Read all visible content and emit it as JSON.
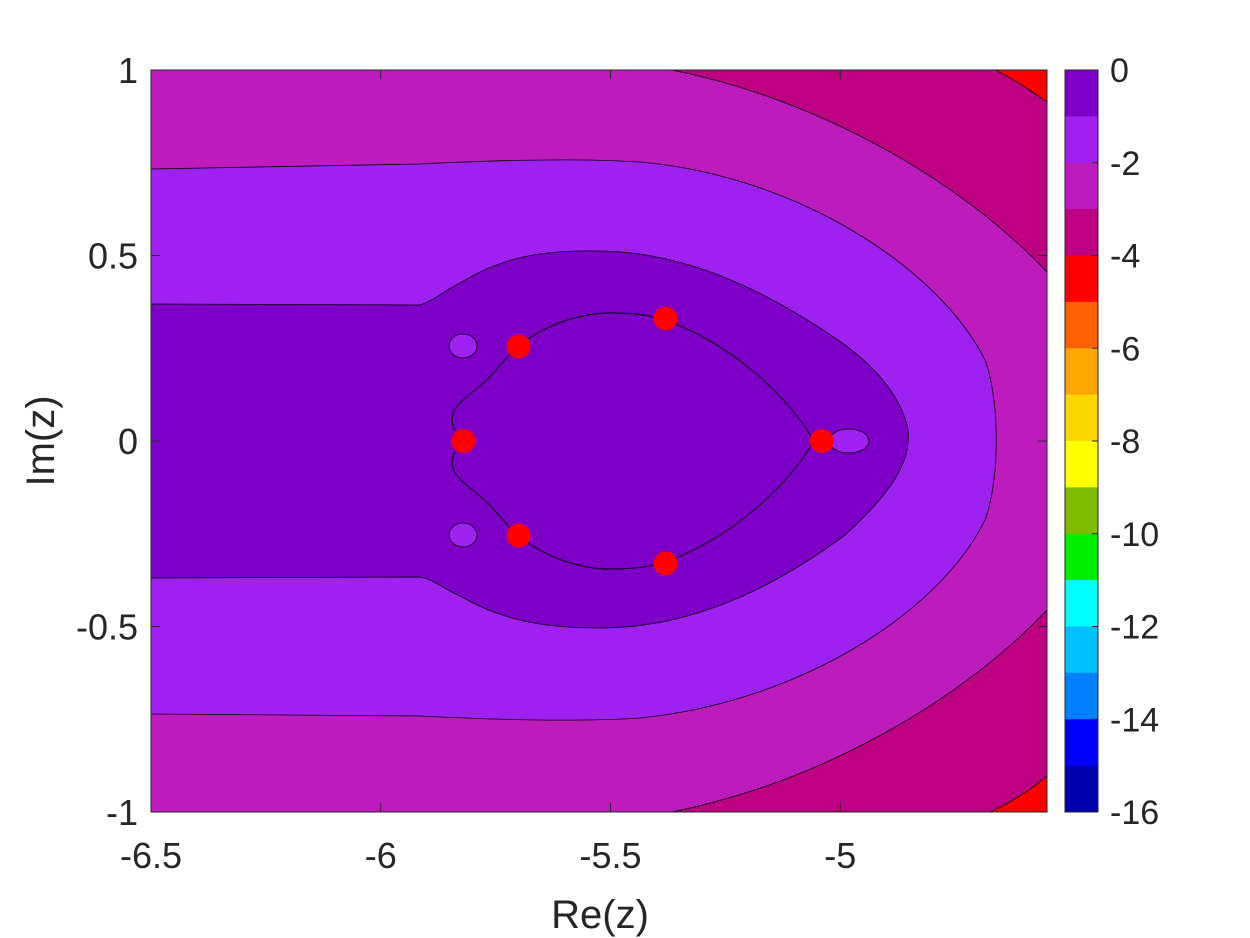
{
  "chart_data": {
    "type": "contour",
    "xlabel": "Re(z)",
    "ylabel": "Im(z)",
    "xlim": [
      -6.5,
      -4.55
    ],
    "ylim": [
      -1,
      1
    ],
    "xticks": [
      -6.5,
      -6,
      -5.5,
      -5
    ],
    "xtick_labels": [
      "-6.5",
      "-6",
      "-5.5",
      "-5"
    ],
    "yticks": [
      1,
      0.5,
      0,
      -0.5,
      -1
    ],
    "ytick_labels": [
      "1",
      "0.5",
      "0",
      "-0.5",
      "-1"
    ],
    "colorbar": {
      "range": [
        -16,
        0
      ],
      "ticks": [
        0,
        -2,
        -4,
        -6,
        -8,
        -10,
        -12,
        -14,
        -16
      ],
      "tick_labels": [
        "0",
        "-2",
        "-4",
        "-6",
        "-8",
        "-10",
        "-12",
        "-14",
        "-16"
      ],
      "level_step": 1,
      "colors_top_to_bottom": [
        "#7e00c8",
        "#9f21f2",
        "#bd1bbd",
        "#be0082",
        "#ff0000",
        "#ff6000",
        "#ffa500",
        "#ffd700",
        "#ffff00",
        "#80bb00",
        "#00ee00",
        "#00ffff",
        "#00bfff",
        "#0080ff",
        "#0000ff",
        "#0000b0"
      ]
    },
    "contour_lines_levels": [
      -1,
      -2,
      -3,
      -4
    ],
    "points": [
      {
        "x": -5.82,
        "y": 0.0
      },
      {
        "x": -5.7,
        "y": 0.255
      },
      {
        "x": -5.7,
        "y": -0.255
      },
      {
        "x": -5.38,
        "y": 0.33
      },
      {
        "x": -5.38,
        "y": -0.33
      },
      {
        "x": -5.04,
        "y": 0.0
      }
    ],
    "point_color": "#ff0000",
    "grid": false
  }
}
